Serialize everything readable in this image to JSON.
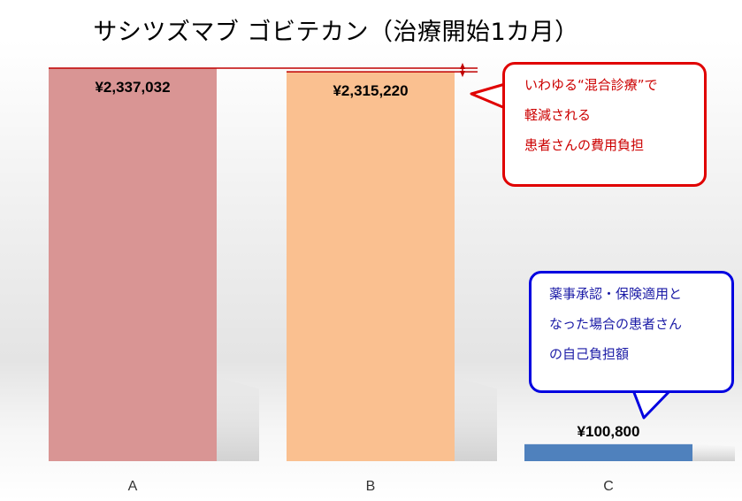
{
  "chart_data": {
    "type": "bar",
    "title": "サシツズマブ ゴビテカン（治療開始1カ月）",
    "categories": [
      "A",
      "B",
      "C"
    ],
    "values": [
      2337032,
      2315220,
      100800
    ],
    "value_labels": [
      "¥2,337,032",
      "¥2,315,220",
      "¥100,800"
    ],
    "colors": [
      "#d99594",
      "#fac090",
      "#4f81bd"
    ],
    "ylim": [
      0,
      2500000
    ],
    "grid": false,
    "reference_line_value": 2337032,
    "reference_line_color": "#c00000"
  },
  "callouts": {
    "red": {
      "lines": [
        "いわゆる“混合診療”で",
        "軽減される",
        "患者さんの費用負担"
      ],
      "color": "#e00000"
    },
    "blue": {
      "lines": [
        "薬事承認・保険適用と",
        "なった場合の患者さん",
        "の自己負担額"
      ],
      "color": "#0000e0"
    }
  }
}
